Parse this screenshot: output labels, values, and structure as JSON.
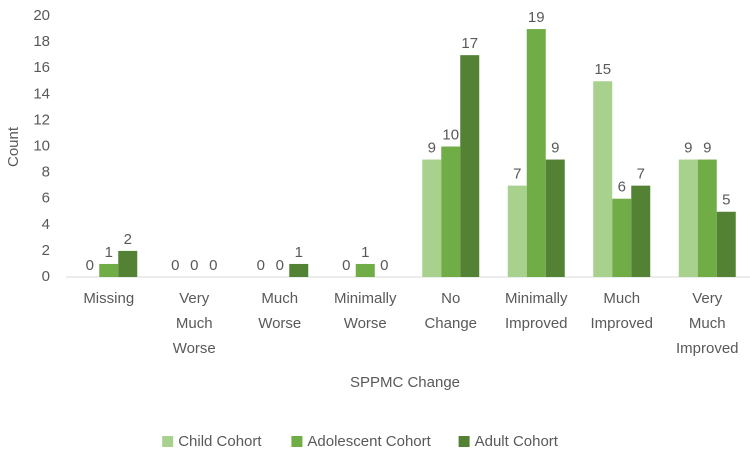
{
  "chart_data": {
    "type": "bar",
    "x_label": "SPPMC Change",
    "y_label": "Count",
    "categories": [
      "Missing",
      "Very Much Worse",
      "Much Worse",
      "Minimally Worse",
      "No Change",
      "Minimally Improved",
      "Much Improved",
      "Very Much Improved"
    ],
    "series": [
      {
        "name": "Child Cohort",
        "color": "#a9d18e",
        "values": [
          0,
          0,
          0,
          0,
          9,
          7,
          15,
          9
        ]
      },
      {
        "name": "Adolescent Cohort",
        "color": "#70ad47",
        "values": [
          1,
          0,
          0,
          1,
          10,
          19,
          6,
          9
        ]
      },
      {
        "name": "Adult Cohort",
        "color": "#548235",
        "values": [
          2,
          0,
          1,
          0,
          17,
          9,
          7,
          5
        ]
      }
    ],
    "ylim": [
      0,
      20
    ],
    "yticks": [
      0,
      2,
      4,
      6,
      8,
      10,
      12,
      14,
      16,
      18,
      20
    ],
    "grid": false,
    "legend": "bottom"
  }
}
